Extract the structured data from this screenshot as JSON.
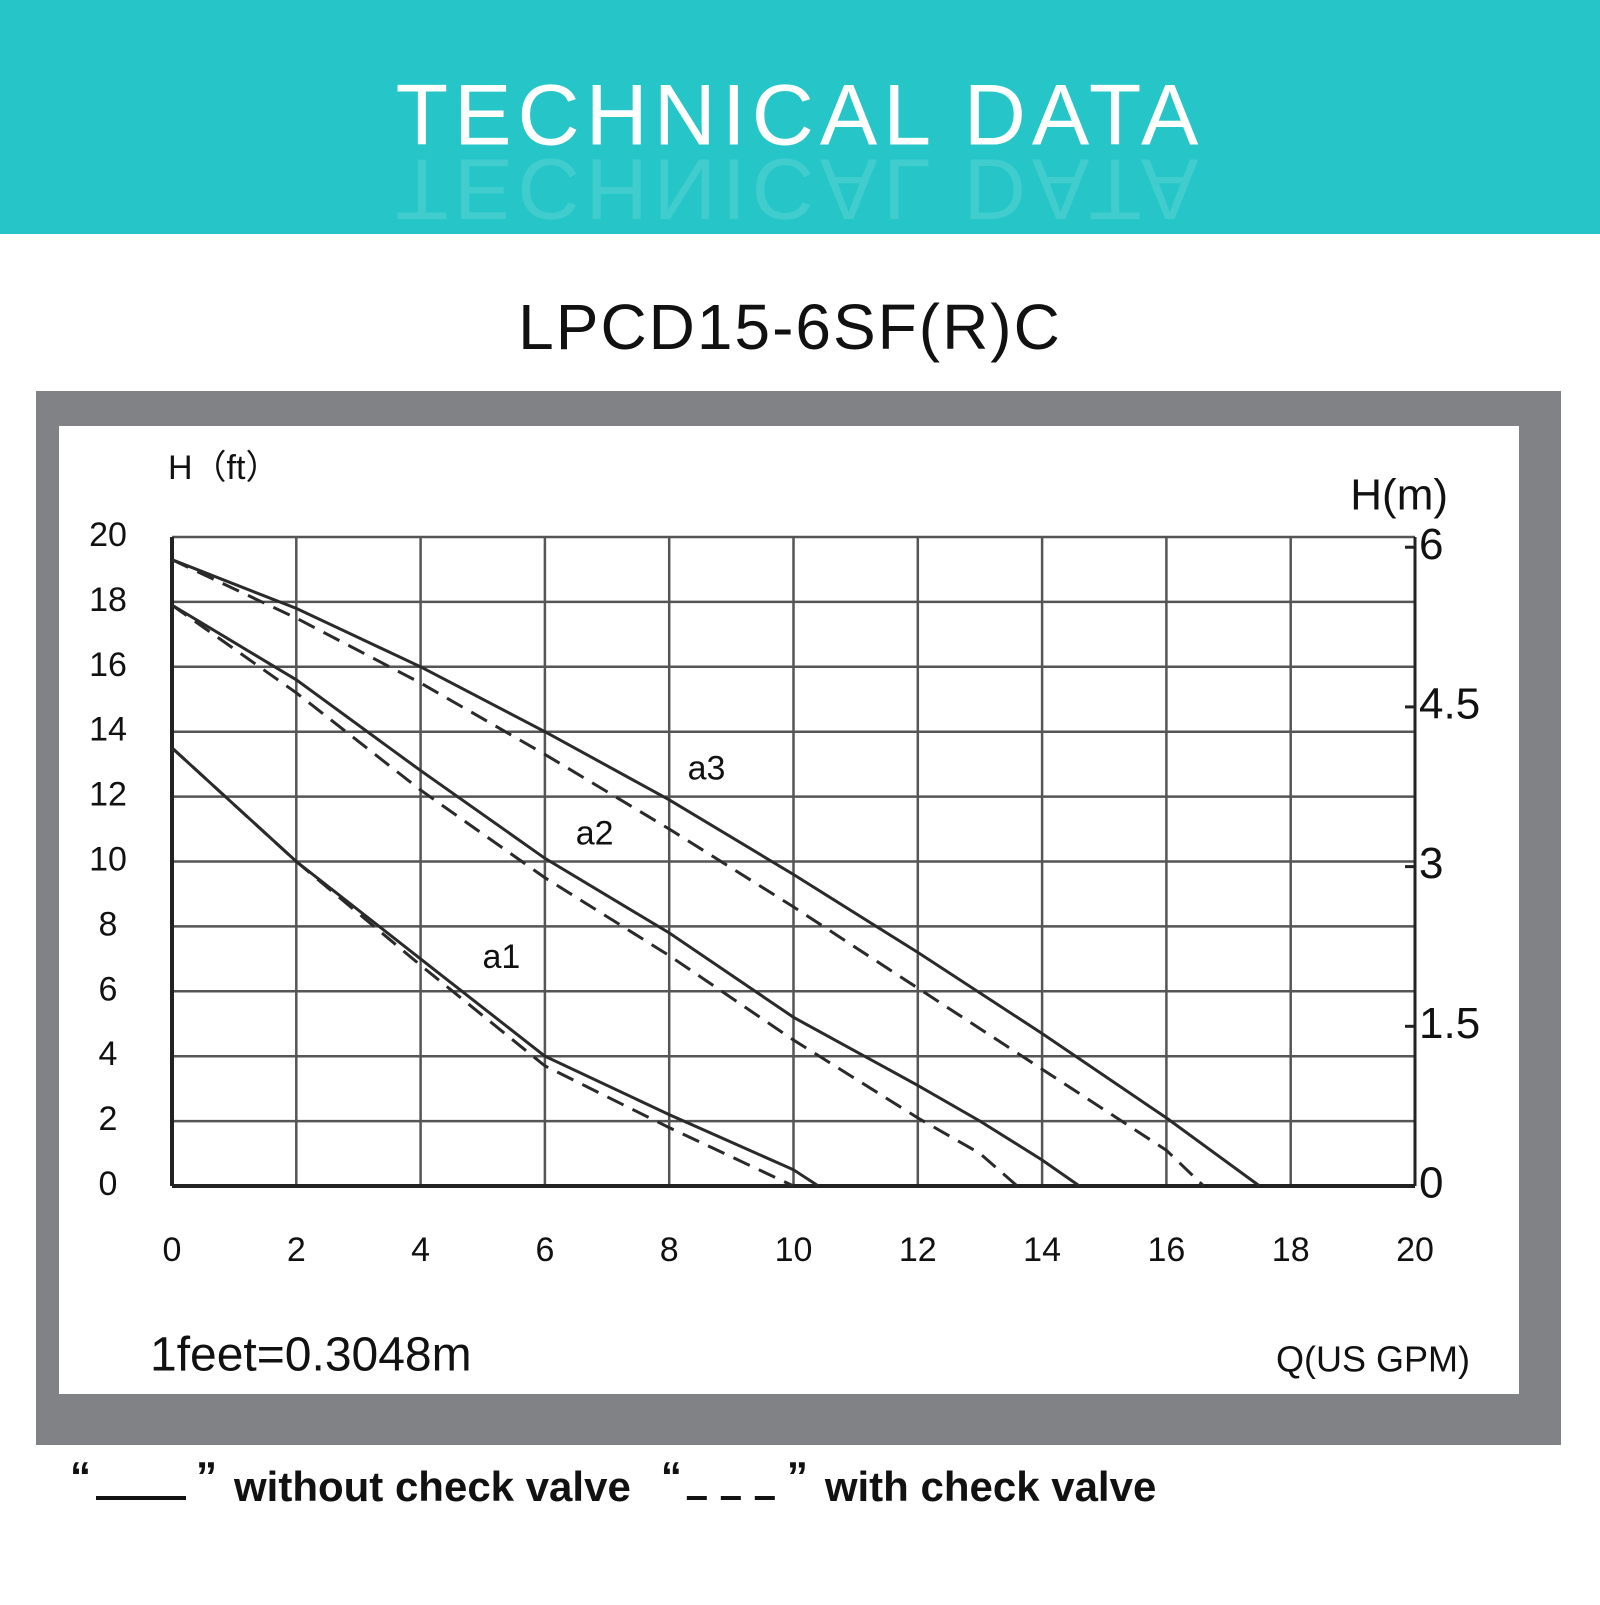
{
  "header": {
    "title": "TECHNICAL DATA"
  },
  "chart_data": {
    "type": "line",
    "title": "LPCD15-6SF(R)C",
    "y_label": "H（ft）",
    "y2_label": "H(m)",
    "x_label": "Q(US GPM)",
    "note": "1feet=0.3048m",
    "xlim": [
      0,
      20
    ],
    "xticks": [
      0,
      2,
      4,
      6,
      8,
      10,
      12,
      14,
      16,
      18,
      20
    ],
    "ylim": [
      0,
      20
    ],
    "yticks": [
      0,
      2,
      4,
      6,
      8,
      10,
      12,
      14,
      16,
      18,
      20
    ],
    "y2lim": [
      0,
      6.096
    ],
    "y2ticks": [
      0,
      1.5,
      3,
      4.5,
      6
    ],
    "grid": true,
    "series": [
      {
        "name": "a1",
        "color": "#2a2a2a",
        "x": [
          0,
          2,
          4,
          6,
          8,
          10,
          10.4
        ],
        "values": [
          13.5,
          10,
          7,
          4,
          2.2,
          0.5,
          0
        ],
        "with_check_valve": {
          "x": [
            0,
            2,
            4,
            6,
            8,
            10
          ],
          "values": [
            13.5,
            10,
            6.8,
            3.7,
            1.8,
            0
          ]
        }
      },
      {
        "name": "a2",
        "color": "#2a2a2a",
        "x": [
          0,
          2,
          4,
          6,
          8,
          10,
          12,
          13,
          14,
          14.6
        ],
        "values": [
          17.9,
          15.6,
          12.8,
          10.1,
          7.8,
          5.2,
          3.1,
          2,
          0.8,
          0
        ],
        "with_check_valve": {
          "x": [
            0,
            2,
            4,
            6,
            8,
            10,
            12,
            13,
            13.6
          ],
          "values": [
            17.9,
            15.2,
            12.2,
            9.5,
            7.1,
            4.5,
            2.1,
            1,
            0
          ]
        }
      },
      {
        "name": "a3",
        "color": "#2a2a2a",
        "x": [
          0,
          2,
          4,
          6,
          8,
          10,
          12,
          14,
          16,
          17.5
        ],
        "values": [
          19.3,
          17.8,
          16,
          14,
          11.9,
          9.6,
          7.2,
          4.7,
          2.1,
          0
        ],
        "with_check_valve": {
          "x": [
            0,
            2,
            4,
            6,
            8,
            10,
            12,
            14,
            16,
            16.6
          ],
          "values": [
            19.3,
            17.5,
            15.5,
            13.3,
            11,
            8.6,
            6.1,
            3.6,
            1.1,
            0
          ]
        }
      }
    ],
    "legend": [
      {
        "open": "“",
        "close": "”",
        "label": "without check valve",
        "style": "solid"
      },
      {
        "open": "“",
        "close": "”",
        "label": "with check valve",
        "style": "dashed"
      }
    ]
  }
}
